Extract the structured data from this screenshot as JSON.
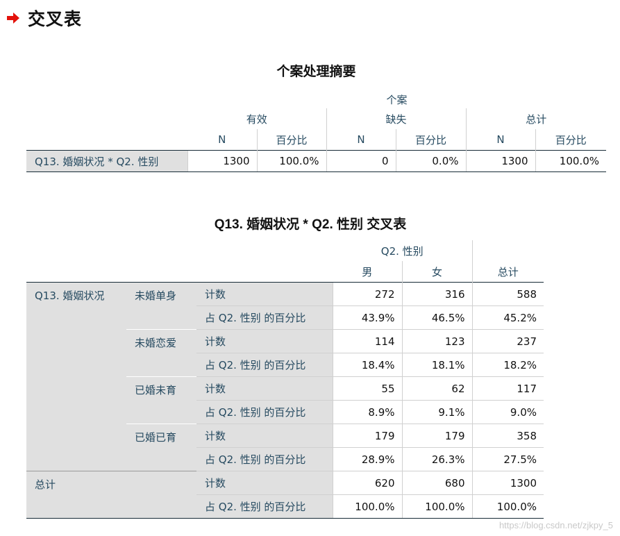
{
  "page": {
    "heading": "交叉表",
    "watermark": "https://blog.csdn.net/zjkpy_5"
  },
  "case_summary": {
    "title": "个案处理摘要",
    "case_header": "个案",
    "groups": [
      "有效",
      "缺失",
      "总计"
    ],
    "subheaders": [
      "N",
      "百分比",
      "N",
      "百分比",
      "N",
      "百分比"
    ],
    "row_label": "Q13. 婚姻状况 * Q2. 性别",
    "values": [
      "1300",
      "100.0%",
      "0",
      "0.0%",
      "1300",
      "100.0%"
    ]
  },
  "crosstab": {
    "title": "Q13. 婚姻状况 * Q2. 性别 交叉表",
    "column_var": "Q2. 性别",
    "columns": [
      "男",
      "女",
      "总计"
    ],
    "row_var": "Q13. 婚姻状况",
    "total_label": "总计",
    "stat_labels": {
      "count": "计数",
      "pct": "占 Q2. 性别 的百分比"
    },
    "groups": [
      {
        "label": "未婚单身",
        "count": [
          "272",
          "316",
          "588"
        ],
        "pct": [
          "43.9%",
          "46.5%",
          "45.2%"
        ]
      },
      {
        "label": "未婚恋爱",
        "count": [
          "114",
          "123",
          "237"
        ],
        "pct": [
          "18.4%",
          "18.1%",
          "18.2%"
        ]
      },
      {
        "label": "已婚未育",
        "count": [
          "55",
          "62",
          "117"
        ],
        "pct": [
          "8.9%",
          "9.1%",
          "9.0%"
        ]
      },
      {
        "label": "已婚已育",
        "count": [
          "179",
          "179",
          "358"
        ],
        "pct": [
          "28.9%",
          "26.3%",
          "27.5%"
        ]
      }
    ],
    "total": {
      "count": [
        "620",
        "680",
        "1300"
      ],
      "pct": [
        "100.0%",
        "100.0%",
        "100.0%"
      ]
    }
  },
  "colors": {
    "arrow": "#e3120b",
    "header_text": "#264a60",
    "label_bg": "#e0e0e0"
  }
}
